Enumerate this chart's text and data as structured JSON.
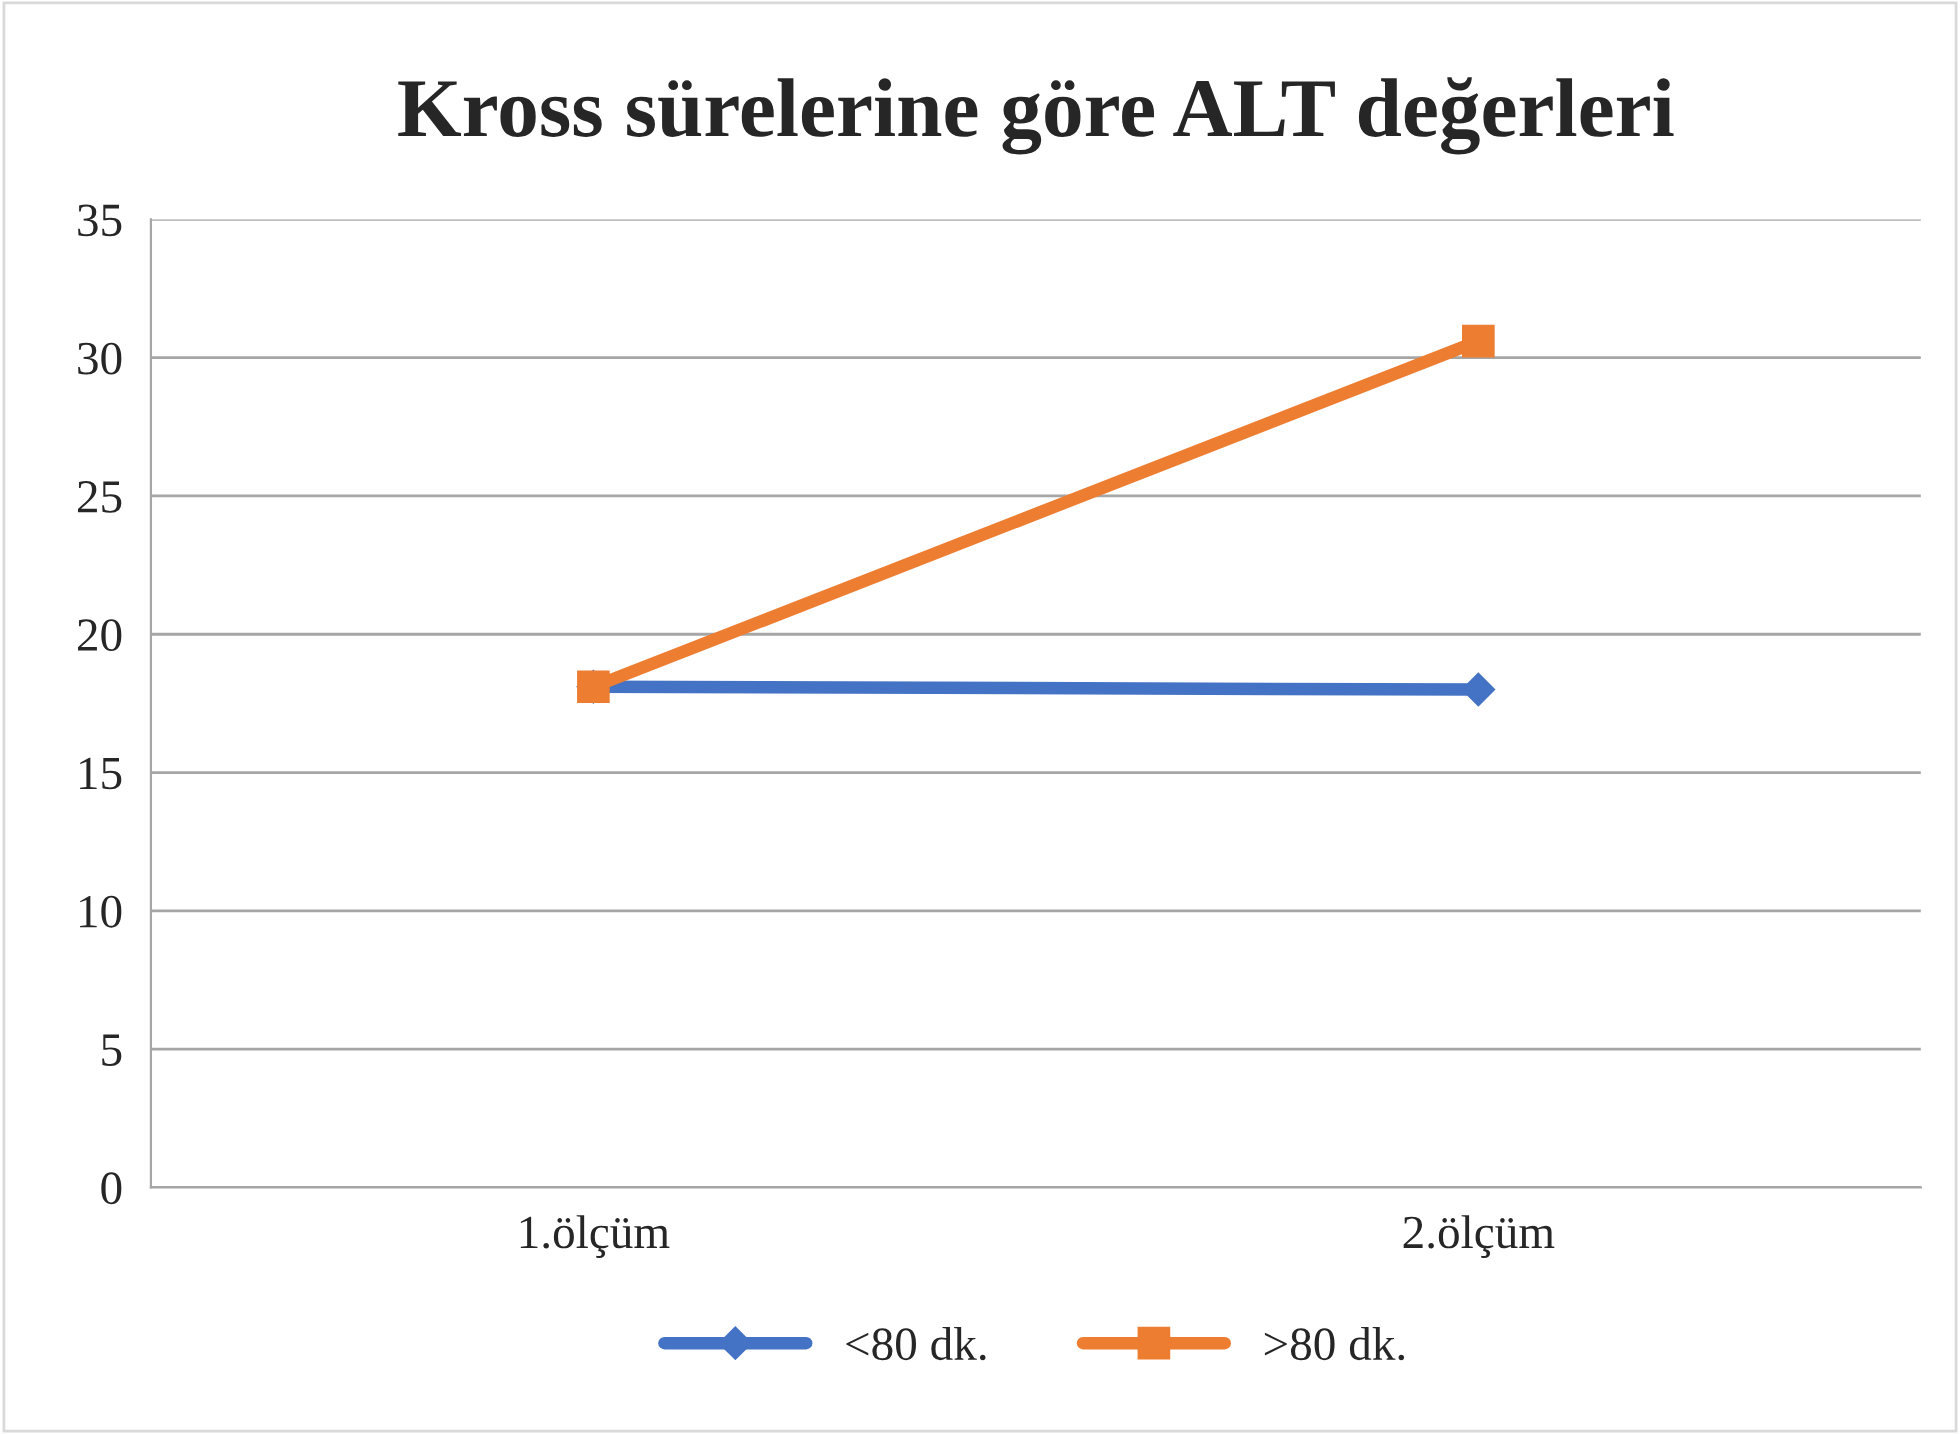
{
  "chart_data": {
    "type": "line",
    "title": "Kross sürelerine göre ALT değerleri",
    "categories": [
      "1.ölçüm",
      "2.ölçüm"
    ],
    "series": [
      {
        "name": "<80 dk.",
        "color": "#4472c4",
        "values": [
          18.1,
          18.0
        ],
        "marker": "diamond"
      },
      {
        "name": ">80 dk.",
        "color": "#ed7d31",
        "values": [
          18.1,
          30.6
        ],
        "marker": "square"
      }
    ],
    "ylim": [
      0,
      35
    ],
    "yticks": [
      0,
      5,
      10,
      15,
      20,
      25,
      30,
      35
    ],
    "grid": "y",
    "legend": "bottom"
  }
}
